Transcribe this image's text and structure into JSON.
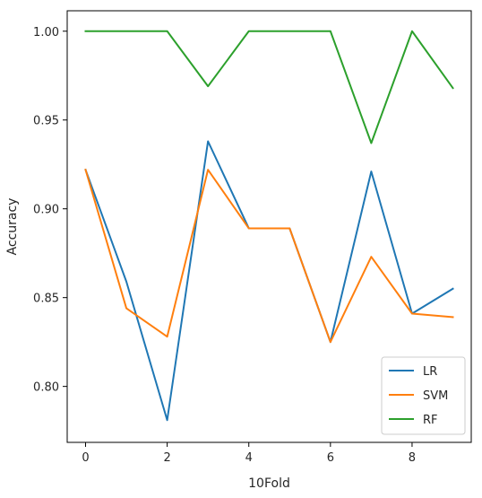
{
  "chart_data": {
    "type": "line",
    "title": "",
    "xlabel": "10Fold",
    "ylabel": "Accuracy",
    "x": [
      0,
      1,
      2,
      3,
      4,
      5,
      6,
      7,
      8,
      9
    ],
    "xlim": [
      -0.45,
      9.45
    ],
    "ylim": [
      0.7685,
      1.0115
    ],
    "xticks": [
      0,
      2,
      4,
      6,
      8
    ],
    "yticks": [
      0.8,
      0.85,
      0.9,
      0.95,
      1.0
    ],
    "ytick_labels": [
      "0.80",
      "0.85",
      "0.90",
      "0.95",
      "1.00"
    ],
    "grid": false,
    "legend_position": "lower-right",
    "series": [
      {
        "name": "LR",
        "color": "#1f77b4",
        "values": [
          0.922,
          0.859,
          0.781,
          0.938,
          0.889,
          0.889,
          0.825,
          0.921,
          0.841,
          0.855
        ]
      },
      {
        "name": "SVM",
        "color": "#ff7f0e",
        "values": [
          0.922,
          0.844,
          0.828,
          0.922,
          0.889,
          0.889,
          0.825,
          0.873,
          0.841,
          0.839
        ]
      },
      {
        "name": "RF",
        "color": "#2ca02c",
        "values": [
          1.0,
          1.0,
          1.0,
          0.969,
          1.0,
          1.0,
          1.0,
          0.937,
          1.0,
          0.968
        ]
      }
    ]
  }
}
